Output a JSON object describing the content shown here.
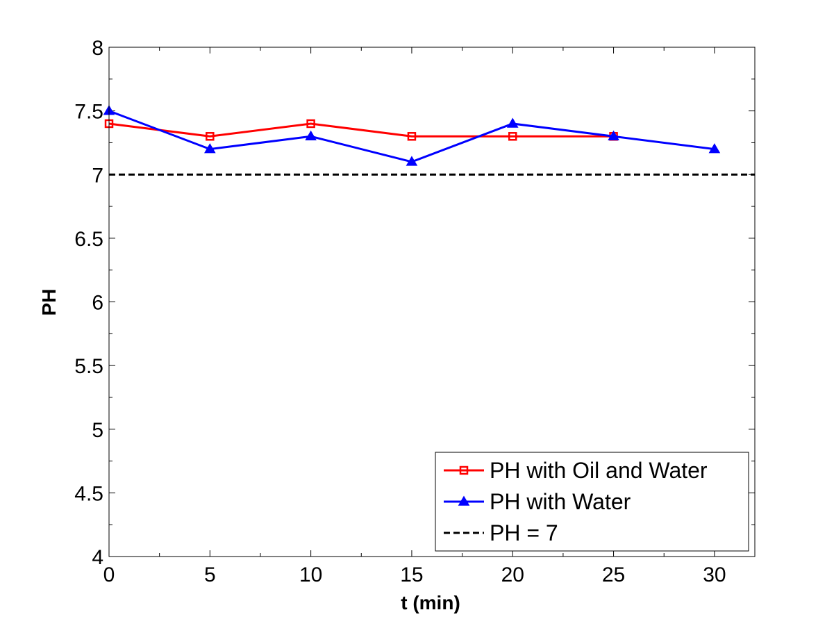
{
  "chart_data": {
    "type": "line",
    "title": "",
    "xlabel": "t (min)",
    "ylabel": "PH",
    "xlim": [
      0,
      32
    ],
    "ylim": [
      4,
      8
    ],
    "xticks": [
      0,
      5,
      10,
      15,
      20,
      25,
      30
    ],
    "yticks": [
      4,
      4.5,
      5,
      5.5,
      6,
      6.5,
      7,
      7.5,
      8
    ],
    "xtick_labels": [
      "0",
      "5",
      "10",
      "15",
      "20",
      "25",
      "30"
    ],
    "ytick_labels": [
      "4",
      "4.5",
      "5",
      "5.5",
      "6",
      "6.5",
      "7",
      "7.5",
      "8"
    ],
    "grid": false,
    "legend_position": "bottom-right",
    "series": [
      {
        "name": "PH with Oil and Water",
        "color": "#ff0000",
        "marker": "square",
        "line_style": "solid",
        "x": [
          0,
          5,
          10,
          15,
          20,
          25
        ],
        "y": [
          7.4,
          7.3,
          7.4,
          7.3,
          7.3,
          7.3
        ]
      },
      {
        "name": "PH with Water",
        "color": "#0000ff",
        "marker": "triangle",
        "line_style": "solid",
        "x": [
          0,
          5,
          10,
          15,
          20,
          25,
          30
        ],
        "y": [
          7.5,
          7.2,
          7.3,
          7.1,
          7.4,
          7.3,
          7.2
        ]
      },
      {
        "name": "PH = 7",
        "color": "#000000",
        "marker": "none",
        "line_style": "dashed",
        "x": [
          0,
          32
        ],
        "y": [
          7,
          7
        ]
      }
    ]
  }
}
